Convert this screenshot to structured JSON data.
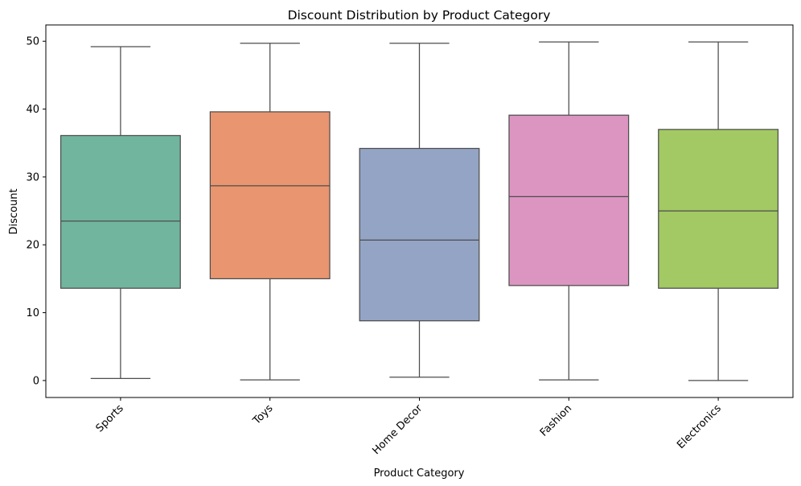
{
  "chart_data": {
    "type": "box",
    "title": "Discount Distribution by Product Category",
    "xlabel": "Product Category",
    "ylabel": "Discount",
    "ylim": [
      -2.5,
      52.4
    ],
    "yticks": [
      "0",
      "10",
      "20",
      "30",
      "40",
      "50"
    ],
    "grid": false,
    "x_tick_rotation_deg": 45,
    "categories": [
      "Sports",
      "Toys",
      "Home Decor",
      "Fashion",
      "Electronics"
    ],
    "boxes": [
      {
        "category": "Sports",
        "min": 0.3,
        "q1": 13.6,
        "median": 23.5,
        "q3": 36.1,
        "max": 49.2,
        "color": "#72b59f"
      },
      {
        "category": "Toys",
        "min": 0.1,
        "q1": 15.0,
        "median": 28.7,
        "q3": 39.6,
        "max": 49.7,
        "color": "#e9956f"
      },
      {
        "category": "Home Decor",
        "min": 0.5,
        "q1": 8.8,
        "median": 20.7,
        "q3": 34.2,
        "max": 49.7,
        "color": "#94a4c5"
      },
      {
        "category": "Fashion",
        "min": 0.1,
        "q1": 14.0,
        "median": 27.1,
        "q3": 39.1,
        "max": 49.9,
        "color": "#dc95c1"
      },
      {
        "category": "Electronics",
        "min": 0.0,
        "q1": 13.6,
        "median": 25.0,
        "q3": 37.0,
        "max": 49.9,
        "color": "#a2c963"
      }
    ]
  }
}
